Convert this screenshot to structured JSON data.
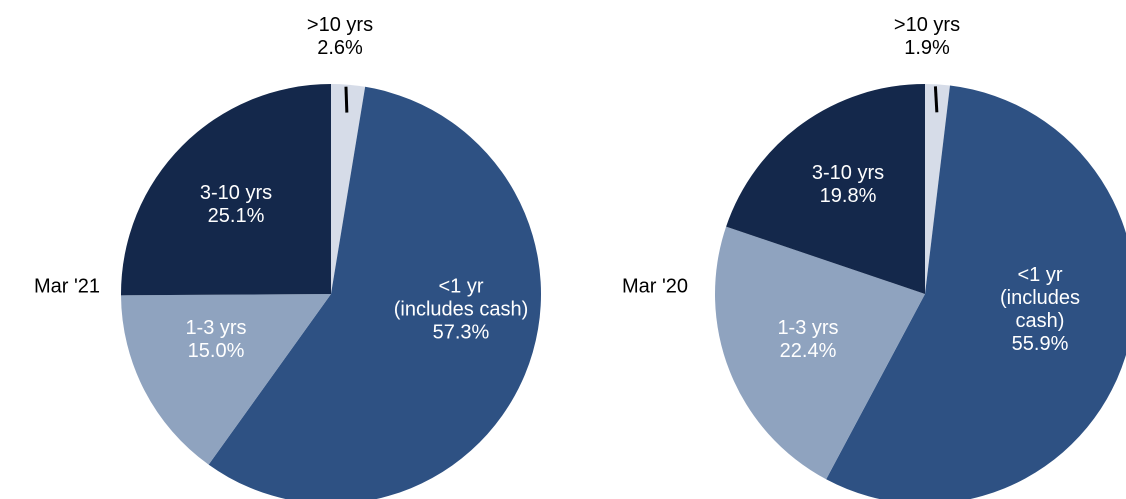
{
  "chart_data": [
    {
      "type": "pie",
      "title": "Mar '21",
      "categories": [
        ">10 yrs",
        "<1 yr\n(includes cash)",
        "1-3 yrs",
        "3-10 yrs"
      ],
      "values": [
        2.6,
        57.3,
        15.0,
        25.1
      ],
      "value_labels": [
        "2.6%",
        "57.3%",
        "15.0%",
        "25.1%"
      ],
      "colors": [
        "#d6dce8",
        "#2e5183",
        "#8fa3bf",
        "#14284b"
      ]
    },
    {
      "type": "pie",
      "title": "Mar '20",
      "categories": [
        ">10 yrs",
        "<1 yr\n(includes cash)",
        "1-3 yrs",
        "3-10 yrs"
      ],
      "values": [
        1.9,
        55.9,
        22.4,
        19.8
      ],
      "value_labels": [
        "1.9%",
        "55.9%",
        "22.4%",
        "19.8%"
      ],
      "colors": [
        "#d6dce8",
        "#2e5183",
        "#8fa3bf",
        "#14284b"
      ]
    }
  ]
}
